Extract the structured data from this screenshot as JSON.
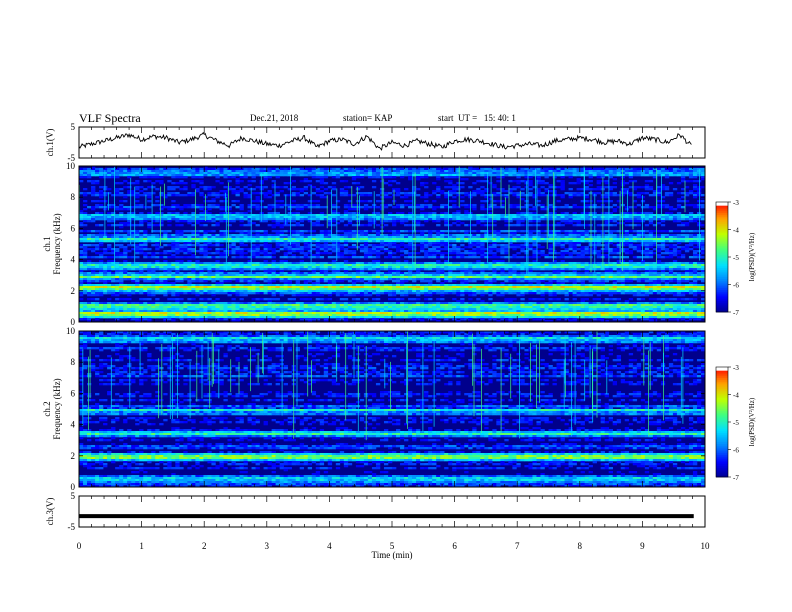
{
  "header": {
    "title": "VLF Spectra",
    "date": "Dec.21, 2018",
    "station": "station= KAP",
    "start": "start  UT =   15: 40: 1"
  },
  "chart_data": [
    {
      "type": "line",
      "name": "ch1-waveform",
      "ylabel": "ch.1(V)",
      "ylim": [
        -5,
        5
      ],
      "yticks": [
        "5",
        "-5"
      ],
      "xlim": [
        0,
        10
      ],
      "x": [
        0,
        0.2,
        0.4,
        0.6,
        0.8,
        1.0,
        1.2,
        1.4,
        1.6,
        1.8,
        2.0,
        2.2,
        2.4,
        2.6,
        2.8,
        3.0,
        3.2,
        3.4,
        3.6,
        3.8,
        4.0,
        4.2,
        4.4,
        4.6,
        4.8,
        5.0,
        5.2,
        5.4,
        5.6,
        5.8,
        6.0,
        6.2,
        6.4,
        6.6,
        6.8,
        7.0,
        7.2,
        7.4,
        7.6,
        7.8,
        8.0,
        8.2,
        8.4,
        8.6,
        8.8,
        9.0,
        9.2,
        9.4,
        9.6,
        9.8
      ],
      "y": [
        -1.5,
        -0.5,
        0.5,
        1.5,
        2.5,
        1.0,
        2.0,
        1.5,
        0.0,
        1.0,
        2.5,
        0.5,
        -1.0,
        1.5,
        0.5,
        -0.5,
        -1.0,
        0.5,
        1.5,
        -1.5,
        0.5,
        1.0,
        -0.5,
        2.0,
        -2.0,
        0.0,
        -1.0,
        0.5,
        -0.5,
        -1.5,
        0.5,
        1.0,
        0.5,
        -0.5,
        -1.5,
        -1.0,
        -0.5,
        -1.0,
        0.5,
        1.0,
        1.5,
        1.0,
        0.0,
        0.5,
        -0.5,
        1.5,
        1.0,
        0.0,
        2.5,
        -1.5
      ]
    },
    {
      "type": "heatmap",
      "name": "ch1-spectrogram",
      "ylabel_top": "ch.1",
      "ylabel": "Frequency (kHz)",
      "ylim": [
        0,
        10
      ],
      "yticks": [
        "0",
        "2",
        "4",
        "6",
        "8",
        "10"
      ],
      "xlim": [
        0,
        10
      ],
      "colorbar": {
        "label": "log(PSD)(V²/Hz)",
        "range": [
          -7,
          -3
        ],
        "ticks": [
          "-3",
          "-4",
          "-5",
          "-6",
          "-7"
        ]
      },
      "band_levels": [
        {
          "f": 0.5,
          "level": -3.6
        },
        {
          "f": 1.0,
          "level": -4.6
        },
        {
          "f": 2.2,
          "level": -4.0
        },
        {
          "f": 2.9,
          "level": -5.0
        },
        {
          "f": 3.6,
          "level": -4.8
        },
        {
          "f": 5.3,
          "level": -5.0
        },
        {
          "f": 6.8,
          "level": -5.6
        },
        {
          "f": 9.5,
          "level": -5.4
        }
      ]
    },
    {
      "type": "heatmap",
      "name": "ch2-spectrogram",
      "ylabel_top": "ch.2",
      "ylabel": "Frequency (kHz)",
      "ylim": [
        0,
        10
      ],
      "yticks": [
        "0",
        "2",
        "4",
        "6",
        "8",
        "10"
      ],
      "xlim": [
        0,
        10
      ],
      "colorbar": {
        "label": "log(PSD)(V²/Hz)",
        "range": [
          -7,
          -3
        ],
        "ticks": [
          "-3",
          "-4",
          "-5",
          "-6",
          "-7"
        ]
      },
      "band_levels": [
        {
          "f": 0.5,
          "level": -4.8
        },
        {
          "f": 1.9,
          "level": -4.2
        },
        {
          "f": 3.4,
          "level": -5.2
        },
        {
          "f": 4.9,
          "level": -5.4
        },
        {
          "f": 9.5,
          "level": -5.4
        }
      ]
    },
    {
      "type": "line",
      "name": "ch3-waveform",
      "ylabel": "ch.3(V)",
      "ylim": [
        -5,
        5
      ],
      "yticks": [
        "5",
        "-5"
      ],
      "xlim": [
        0,
        10
      ],
      "x": [
        0,
        9.82
      ],
      "y": [
        -1.5,
        -1.5
      ]
    }
  ],
  "x_axis": {
    "label": "Time (min)",
    "ticks": [
      "0",
      "1",
      "2",
      "3",
      "4",
      "5",
      "6",
      "7",
      "8",
      "9",
      "10"
    ]
  },
  "colors": {
    "colormap": [
      "#00008c",
      "#0000ff",
      "#0080ff",
      "#00e0ff",
      "#40ff80",
      "#c0ff00",
      "#ffa000",
      "#ff0000",
      "#ffffff"
    ]
  }
}
